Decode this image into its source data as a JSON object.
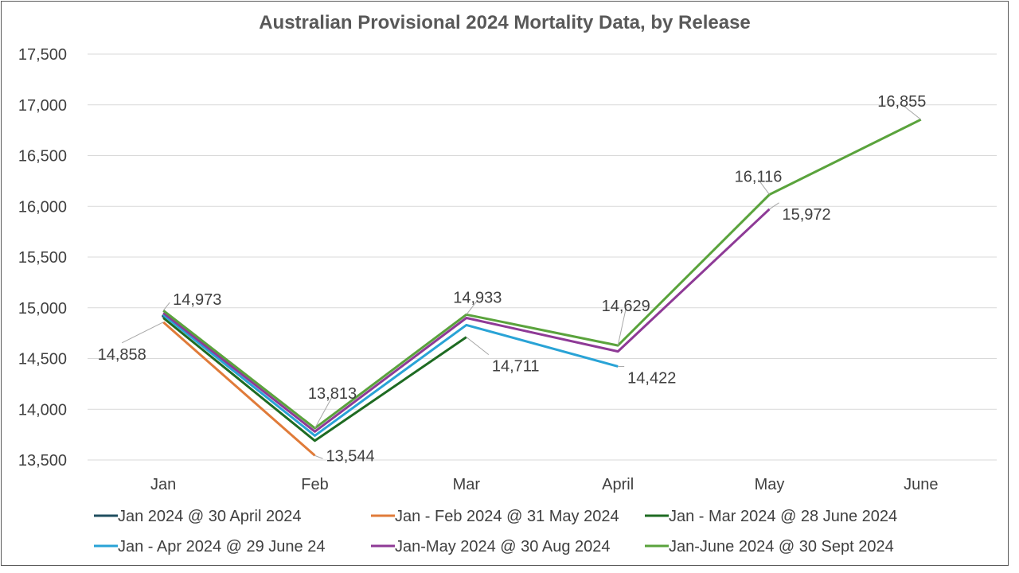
{
  "chart_data": {
    "type": "line",
    "title": "Australian Provisional 2024 Mortality Data, by Release",
    "xlabel": "",
    "ylabel": "",
    "categories": [
      "Jan",
      "Feb",
      "Mar",
      "April",
      "May",
      "June"
    ],
    "ylim": [
      13500,
      17500
    ],
    "yticks": [
      13500,
      14000,
      14500,
      15000,
      15500,
      16000,
      16500,
      17000,
      17500
    ],
    "ytick_labels": [
      "13,500",
      "14,000",
      "14,500",
      "15,000",
      "15,500",
      "16,000",
      "16,500",
      "17,000",
      "17,500"
    ],
    "grid": true,
    "legend_position": "bottom",
    "series": [
      {
        "name": "Jan 2024 @ 30 April 2024",
        "color": "#1f4e5f",
        "values": [
          14918,
          null,
          null,
          null,
          null,
          null
        ]
      },
      {
        "name": "Jan - Feb 2024 @ 31 May 2024",
        "color": "#e07b39",
        "values": [
          14858,
          13544,
          null,
          null,
          null,
          null
        ]
      },
      {
        "name": "Jan - Mar 2024 @ 28 June 2024",
        "color": "#1e6b22",
        "values": [
          14900,
          13690,
          14711,
          null,
          null,
          null
        ]
      },
      {
        "name": "Jan - Apr 2024 @ 29 June 24",
        "color": "#29a3d6",
        "values": [
          14930,
          13740,
          14830,
          14422,
          null,
          null
        ]
      },
      {
        "name": "Jan-May 2024 @ 30 Aug 2024",
        "color": "#8e3a96",
        "values": [
          14950,
          13780,
          14900,
          14570,
          15972,
          null
        ]
      },
      {
        "name": "Jan-June 2024 @ 30 Sept 2024",
        "color": "#5aa33c",
        "values": [
          14973,
          13813,
          14933,
          14629,
          16116,
          16855
        ]
      }
    ],
    "data_labels": [
      {
        "series": 5,
        "index": 0,
        "text": "14,973"
      },
      {
        "series": 1,
        "index": 0,
        "text": "14,858"
      },
      {
        "series": 5,
        "index": 1,
        "text": "13,813"
      },
      {
        "series": 1,
        "index": 1,
        "text": "13,544"
      },
      {
        "series": 5,
        "index": 2,
        "text": "14,933"
      },
      {
        "series": 2,
        "index": 2,
        "text": "14,711"
      },
      {
        "series": 5,
        "index": 3,
        "text": "14,629"
      },
      {
        "series": 3,
        "index": 3,
        "text": "14,422"
      },
      {
        "series": 5,
        "index": 4,
        "text": "16,116"
      },
      {
        "series": 4,
        "index": 4,
        "text": "15,972"
      },
      {
        "series": 5,
        "index": 5,
        "text": "16,855"
      }
    ]
  }
}
